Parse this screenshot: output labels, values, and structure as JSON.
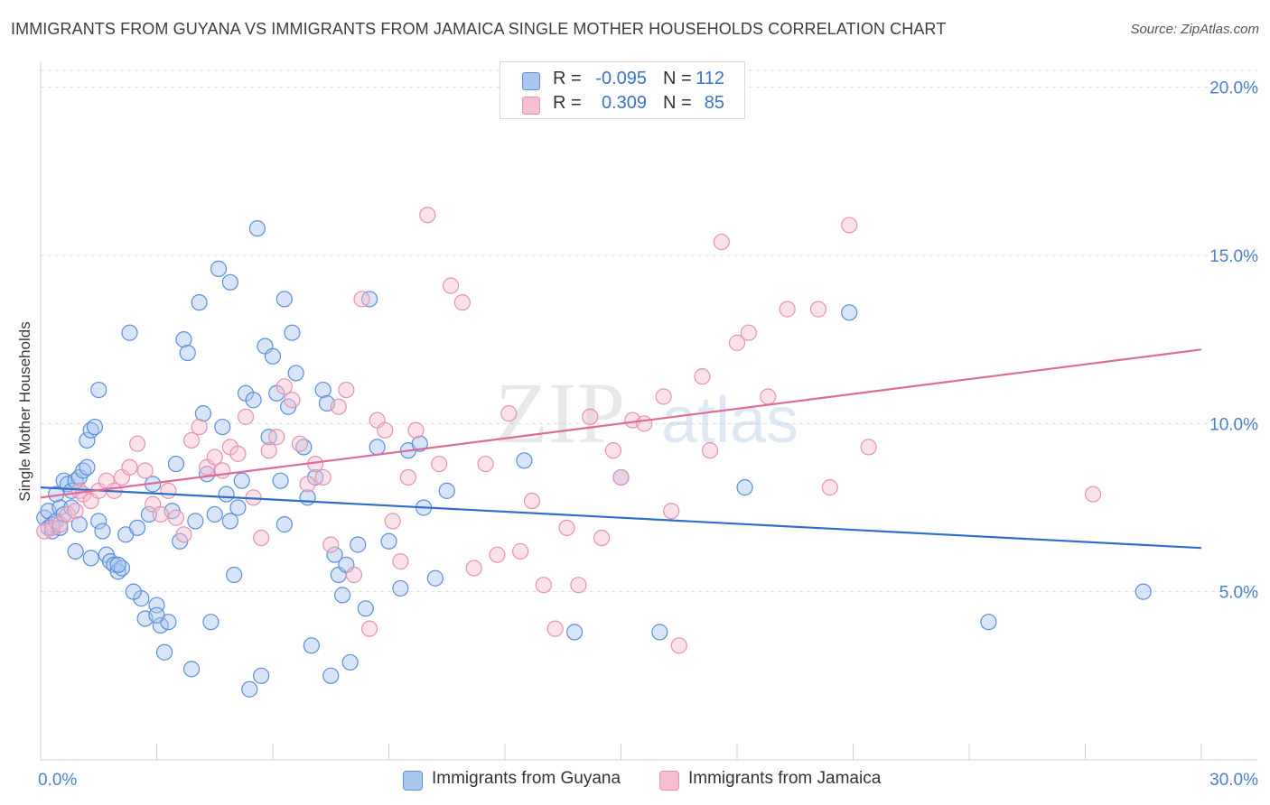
{
  "title": "IMMIGRANTS FROM GUYANA VS IMMIGRANTS FROM JAMAICA SINGLE MOTHER HOUSEHOLDS CORRELATION CHART",
  "source": "Source: ZipAtlas.com",
  "watermark": {
    "zip": "ZIP",
    "atlas": "atlas"
  },
  "legend": {
    "rows": [
      {
        "r_label": "R =",
        "r_value": "-0.095",
        "n_label": "N =",
        "n_value": "112"
      },
      {
        "r_label": "R =",
        "r_value": "0.309",
        "n_label": "N =",
        "n_value": "85"
      }
    ]
  },
  "bottom_legend": {
    "guyana": "Immigrants from Guyana",
    "jamaica": "Immigrants from Jamaica"
  },
  "colors": {
    "blue_fill": "#a9c6ef",
    "blue_stroke": "#5b8fd6",
    "blue_line": "#2f6fcc",
    "pink_fill": "#f6bfd0",
    "pink_stroke": "#e592ad",
    "pink_line": "#e06a96",
    "tick": "#4a7fc8"
  },
  "chart_data": {
    "type": "scatter",
    "title": "IMMIGRANTS FROM GUYANA VS IMMIGRANTS FROM JAMAICA SINGLE MOTHER HOUSEHOLDS CORRELATION CHART",
    "xlabel": "",
    "ylabel": "Single Mother Households",
    "xlim": [
      0,
      30
    ],
    "ylim": [
      0,
      20.5
    ],
    "x_tick_labels": [
      "0.0%",
      "30.0%"
    ],
    "y_ticks": [
      5,
      10,
      15,
      20
    ],
    "y_tick_labels": [
      "5.0%",
      "10.0%",
      "15.0%",
      "20.0%"
    ],
    "series": [
      {
        "name": "Immigrants from Guyana",
        "color": "#5b8fd6",
        "trend": {
          "x": [
            0,
            30
          ],
          "y": [
            8.1,
            6.3
          ]
        },
        "points": [
          [
            0.1,
            7.2
          ],
          [
            0.2,
            6.9
          ],
          [
            0.2,
            7.4
          ],
          [
            0.3,
            6.8
          ],
          [
            0.3,
            7.0
          ],
          [
            0.4,
            7.1
          ],
          [
            0.5,
            7.5
          ],
          [
            0.5,
            6.9
          ],
          [
            0.6,
            7.3
          ],
          [
            0.6,
            8.3
          ],
          [
            0.7,
            8.2
          ],
          [
            0.8,
            8.0
          ],
          [
            0.8,
            7.5
          ],
          [
            0.9,
            8.3
          ],
          [
            1.0,
            8.4
          ],
          [
            1.0,
            7.0
          ],
          [
            1.1,
            8.6
          ],
          [
            1.2,
            8.7
          ],
          [
            1.2,
            9.5
          ],
          [
            1.3,
            9.8
          ],
          [
            1.4,
            9.9
          ],
          [
            1.5,
            11.0
          ],
          [
            1.5,
            7.1
          ],
          [
            1.6,
            6.8
          ],
          [
            1.7,
            6.1
          ],
          [
            1.8,
            5.9
          ],
          [
            1.9,
            5.8
          ],
          [
            2.0,
            5.6
          ],
          [
            2.1,
            5.7
          ],
          [
            2.2,
            6.7
          ],
          [
            2.3,
            12.7
          ],
          [
            2.5,
            6.9
          ],
          [
            2.6,
            4.8
          ],
          [
            2.7,
            4.2
          ],
          [
            2.8,
            7.3
          ],
          [
            2.9,
            8.2
          ],
          [
            3.0,
            4.6
          ],
          [
            3.1,
            4.0
          ],
          [
            3.2,
            3.2
          ],
          [
            3.3,
            4.1
          ],
          [
            3.4,
            7.4
          ],
          [
            3.5,
            8.8
          ],
          [
            3.6,
            6.5
          ],
          [
            3.7,
            12.5
          ],
          [
            3.8,
            12.1
          ],
          [
            3.9,
            2.7
          ],
          [
            4.0,
            7.1
          ],
          [
            4.1,
            13.6
          ],
          [
            4.2,
            10.3
          ],
          [
            4.3,
            8.5
          ],
          [
            4.4,
            4.1
          ],
          [
            4.5,
            7.3
          ],
          [
            4.6,
            14.6
          ],
          [
            4.7,
            9.9
          ],
          [
            4.8,
            7.9
          ],
          [
            4.9,
            14.2
          ],
          [
            5.0,
            5.5
          ],
          [
            5.1,
            7.5
          ],
          [
            5.2,
            8.3
          ],
          [
            5.3,
            10.9
          ],
          [
            5.4,
            2.1
          ],
          [
            5.5,
            10.7
          ],
          [
            5.6,
            15.8
          ],
          [
            5.7,
            2.5
          ],
          [
            5.8,
            12.3
          ],
          [
            5.9,
            9.6
          ],
          [
            6.0,
            12.0
          ],
          [
            6.1,
            10.9
          ],
          [
            6.2,
            8.3
          ],
          [
            6.3,
            13.7
          ],
          [
            6.4,
            10.5
          ],
          [
            6.5,
            12.7
          ],
          [
            6.6,
            11.5
          ],
          [
            6.8,
            9.3
          ],
          [
            6.9,
            7.8
          ],
          [
            7.0,
            3.4
          ],
          [
            7.1,
            8.4
          ],
          [
            7.3,
            11.0
          ],
          [
            7.4,
            10.6
          ],
          [
            7.5,
            2.5
          ],
          [
            7.6,
            6.1
          ],
          [
            7.7,
            5.5
          ],
          [
            7.8,
            4.9
          ],
          [
            7.9,
            5.8
          ],
          [
            8.0,
            2.9
          ],
          [
            8.2,
            6.4
          ],
          [
            8.4,
            4.5
          ],
          [
            8.5,
            13.7
          ],
          [
            8.7,
            9.3
          ],
          [
            9.0,
            6.5
          ],
          [
            9.3,
            5.1
          ],
          [
            9.5,
            9.2
          ],
          [
            9.8,
            9.4
          ],
          [
            9.9,
            7.5
          ],
          [
            10.2,
            5.4
          ],
          [
            10.5,
            8.0
          ],
          [
            12.5,
            8.9
          ],
          [
            13.8,
            3.8
          ],
          [
            15.0,
            8.4
          ],
          [
            16.0,
            3.8
          ],
          [
            18.2,
            8.1
          ],
          [
            20.9,
            13.3
          ],
          [
            24.5,
            4.1
          ],
          [
            28.5,
            5.0
          ],
          [
            0.4,
            7.9
          ],
          [
            0.9,
            6.2
          ],
          [
            2.4,
            5.0
          ],
          [
            4.9,
            7.1
          ],
          [
            6.3,
            7.0
          ],
          [
            3.0,
            4.3
          ],
          [
            1.3,
            6.0
          ],
          [
            2.0,
            5.8
          ]
        ]
      },
      {
        "name": "Immigrants from Jamaica",
        "color": "#e592ad",
        "trend": {
          "x": [
            0,
            30
          ],
          "y": [
            7.8,
            12.2
          ]
        },
        "points": [
          [
            0.1,
            6.8
          ],
          [
            0.3,
            6.9
          ],
          [
            0.5,
            7.0
          ],
          [
            0.7,
            7.3
          ],
          [
            0.9,
            7.4
          ],
          [
            1.0,
            8.0
          ],
          [
            1.1,
            7.9
          ],
          [
            1.3,
            7.7
          ],
          [
            1.5,
            8.0
          ],
          [
            1.7,
            8.3
          ],
          [
            1.9,
            8.0
          ],
          [
            2.1,
            8.4
          ],
          [
            2.3,
            8.7
          ],
          [
            2.5,
            9.4
          ],
          [
            2.7,
            8.6
          ],
          [
            2.9,
            7.6
          ],
          [
            3.1,
            7.3
          ],
          [
            3.3,
            8.0
          ],
          [
            3.5,
            7.2
          ],
          [
            3.7,
            6.7
          ],
          [
            3.9,
            9.5
          ],
          [
            4.1,
            9.9
          ],
          [
            4.3,
            8.7
          ],
          [
            4.5,
            9.0
          ],
          [
            4.7,
            8.6
          ],
          [
            4.9,
            9.3
          ],
          [
            5.1,
            9.1
          ],
          [
            5.3,
            10.2
          ],
          [
            5.5,
            7.8
          ],
          [
            5.7,
            6.6
          ],
          [
            5.9,
            9.2
          ],
          [
            6.1,
            9.6
          ],
          [
            6.3,
            11.1
          ],
          [
            6.5,
            10.7
          ],
          [
            6.7,
            9.4
          ],
          [
            6.9,
            8.2
          ],
          [
            7.1,
            8.8
          ],
          [
            7.3,
            8.4
          ],
          [
            7.5,
            6.4
          ],
          [
            7.7,
            10.5
          ],
          [
            7.9,
            11.0
          ],
          [
            8.1,
            5.5
          ],
          [
            8.3,
            13.7
          ],
          [
            8.5,
            3.9
          ],
          [
            8.7,
            10.1
          ],
          [
            8.9,
            9.8
          ],
          [
            9.1,
            7.1
          ],
          [
            9.3,
            5.9
          ],
          [
            9.5,
            8.4
          ],
          [
            9.7,
            9.8
          ],
          [
            10.0,
            16.2
          ],
          [
            10.3,
            8.8
          ],
          [
            10.6,
            14.1
          ],
          [
            10.9,
            13.6
          ],
          [
            11.2,
            5.7
          ],
          [
            11.5,
            8.8
          ],
          [
            11.8,
            6.1
          ],
          [
            12.1,
            10.3
          ],
          [
            12.4,
            6.2
          ],
          [
            12.7,
            7.7
          ],
          [
            13.0,
            5.2
          ],
          [
            13.3,
            3.9
          ],
          [
            13.6,
            6.9
          ],
          [
            13.9,
            5.2
          ],
          [
            14.2,
            10.2
          ],
          [
            14.5,
            6.6
          ],
          [
            14.8,
            9.2
          ],
          [
            15.0,
            8.4
          ],
          [
            15.3,
            10.1
          ],
          [
            15.6,
            10.0
          ],
          [
            16.1,
            10.8
          ],
          [
            16.3,
            7.4
          ],
          [
            16.5,
            3.4
          ],
          [
            17.1,
            11.4
          ],
          [
            17.3,
            9.2
          ],
          [
            17.6,
            15.4
          ],
          [
            18.0,
            12.4
          ],
          [
            18.3,
            12.7
          ],
          [
            18.8,
            10.8
          ],
          [
            19.3,
            13.4
          ],
          [
            20.1,
            13.4
          ],
          [
            20.4,
            8.1
          ],
          [
            20.9,
            15.9
          ],
          [
            21.4,
            9.3
          ],
          [
            27.2,
            7.9
          ]
        ]
      }
    ]
  }
}
